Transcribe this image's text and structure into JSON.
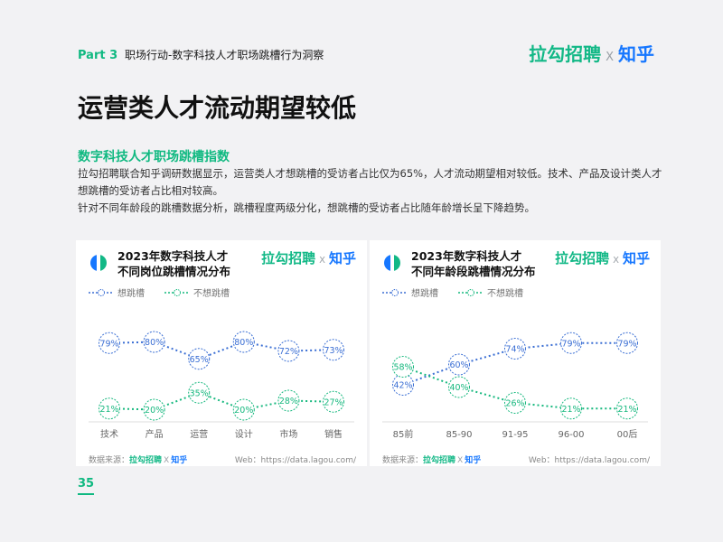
{
  "header": {
    "part": "Part 3",
    "subtitle": "职场行动-数字科技人才职场跳槽行为洞察"
  },
  "brand": {
    "lagou": "拉勾招聘",
    "x": "X",
    "zhihu": "知乎"
  },
  "page_title": "运营类人才流动期望较低",
  "section_title": "数字科技人才职场跳槽指数",
  "paragraphs": [
    "拉勾招聘联合知乎调研数据显示，运营类人才想跳槽的受访者占比仅为65%，人才流动期望相对较低。技术、产品及设计类人才想跳槽的受访者占比相对较高。",
    "针对不同年龄段的跳槽数据分析，跳槽程度两级分化，想跳槽的受访者占比随年龄增长呈下降趋势。"
  ],
  "source": {
    "label": "数据来源：",
    "web": "Web：https://data.lagou.com/"
  },
  "page_number": "35",
  "colors": {
    "series1": "#3b6fd4",
    "series2": "#16b87e",
    "accent": "#10b981"
  },
  "chart_data": [
    {
      "type": "line",
      "title": "2023年数字科技人才\n不同岗位跳槽情况分布",
      "title_lines": [
        "2023年数字科技人才",
        "不同岗位跳槽情况分布"
      ],
      "categories": [
        "技术",
        "产品",
        "运营",
        "设计",
        "市场",
        "销售"
      ],
      "series": [
        {
          "name": "想跳槽",
          "values": [
            79,
            80,
            65,
            80,
            72,
            73
          ]
        },
        {
          "name": "不想跳槽",
          "values": [
            21,
            20,
            35,
            20,
            28,
            27
          ]
        }
      ],
      "ylim": [
        10,
        90
      ],
      "legend": "top-left",
      "grid": false
    },
    {
      "type": "line",
      "title": "2023年数字科技人才\n不同年龄段跳槽情况分布",
      "title_lines": [
        "2023年数字科技人才",
        "不同年龄段跳槽情况分布"
      ],
      "categories": [
        "85前",
        "85-90",
        "91-95",
        "96-00",
        "00后"
      ],
      "series": [
        {
          "name": "想跳槽",
          "values": [
            42,
            60,
            74,
            79,
            79
          ]
        },
        {
          "name": "不想跳槽",
          "values": [
            58,
            40,
            26,
            21,
            21
          ]
        }
      ],
      "ylim": [
        10,
        90
      ],
      "legend": "top-left",
      "grid": false
    }
  ]
}
